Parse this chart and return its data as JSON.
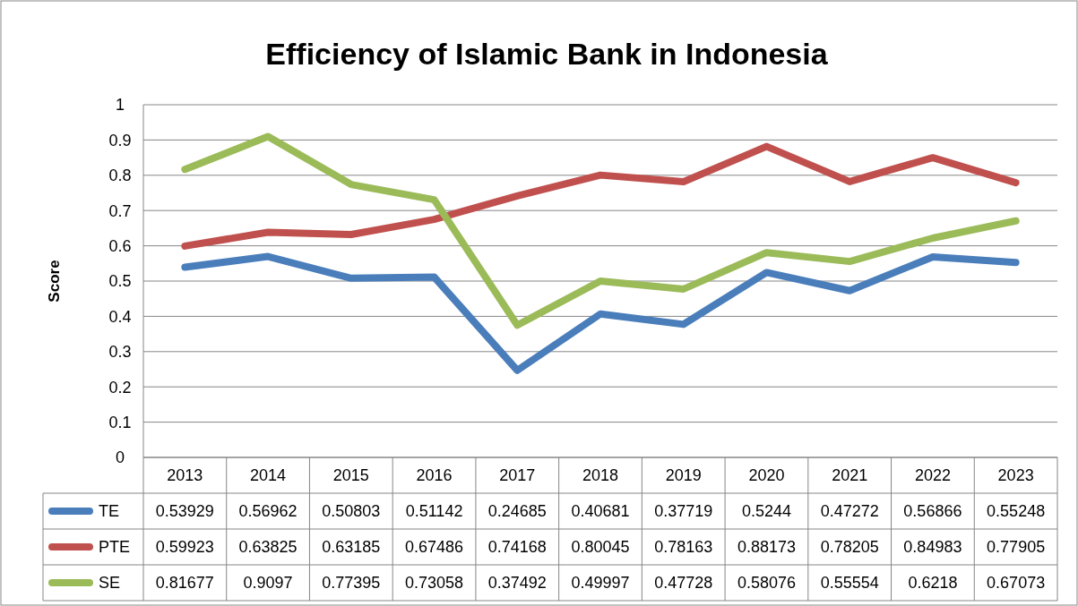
{
  "chart_data": {
    "type": "line",
    "title": "Efficiency of Islamic Bank in Indonesia",
    "ylabel": "Score",
    "categories": [
      "2013",
      "2014",
      "2015",
      "2016",
      "2017",
      "2018",
      "2019",
      "2020",
      "2021",
      "2022",
      "2023"
    ],
    "series": [
      {
        "name": "TE",
        "color": "#4a7ebb",
        "values": [
          0.53929,
          0.56962,
          0.50803,
          0.51142,
          0.24685,
          0.40681,
          0.37719,
          0.5244,
          0.47272,
          0.56866,
          0.55248
        ]
      },
      {
        "name": "PTE",
        "color": "#c0504d",
        "values": [
          0.59923,
          0.63825,
          0.63185,
          0.67486,
          0.74168,
          0.80045,
          0.78163,
          0.88173,
          0.78205,
          0.84983,
          0.77905
        ]
      },
      {
        "name": "SE",
        "color": "#9bbb59",
        "values": [
          0.81677,
          0.9097,
          0.77395,
          0.73058,
          0.37492,
          0.49997,
          0.47728,
          0.58076,
          0.55554,
          0.6218,
          0.67073
        ]
      }
    ],
    "ylim": [
      0,
      1
    ],
    "yticks": [
      0,
      0.1,
      0.2,
      0.3,
      0.4,
      0.5,
      0.6,
      0.7,
      0.8,
      0.9,
      1
    ],
    "grid": "y",
    "legend": "bottom",
    "data_labels": true,
    "line_style": "solid"
  }
}
